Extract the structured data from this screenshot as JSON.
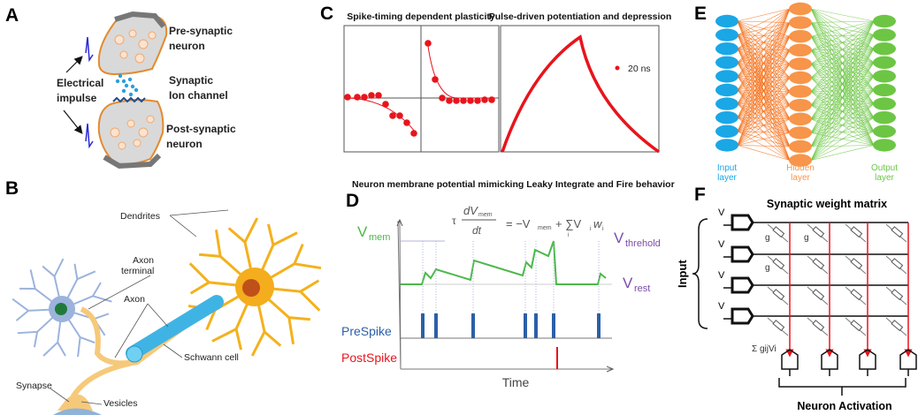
{
  "panels": {
    "A": {
      "label": "A",
      "pre": [
        "Pre-synaptic",
        "neuron"
      ],
      "channel": [
        "Synaptic",
        "Ion channel"
      ],
      "impulse": [
        "Electrical",
        "impulse"
      ],
      "post": [
        "Post-synaptic",
        "neuron"
      ]
    },
    "B": {
      "label": "B",
      "dendrites": "Dendrites",
      "axon_terminal": [
        "Axon",
        "terminal"
      ],
      "axon": "Axon",
      "schwann": "Schwann cell",
      "synapse": "Synapse",
      "vesicles": "Vesicles"
    },
    "C": {
      "label": "C",
      "title_left": "Spike-timing dependent plasticity",
      "title_right": "Pulse-driven potentiation and depression",
      "legend": "20 ns",
      "color": "#e8141c"
    },
    "D": {
      "title": "Neuron membrane potential mimicking Leaky Integrate and Fire behavior",
      "label": "D",
      "vmem": "V",
      "vmem_sub": "mem",
      "vth": "V",
      "vth_sub": "threhold",
      "vrest": "V",
      "vrest_sub": "rest",
      "equation": {
        "tau": "τ",
        "num": "dV",
        "num_sub": "mem",
        "den": "dt",
        "rhs": "= −V",
        "rhs_sub": "mem",
        "plus": "+ ∑V",
        "plus_sub": "i",
        "w": "w",
        "w_sub": "i",
        "sum_sub": "i"
      },
      "prespike": "PreSpike",
      "postspike": "PostSpike",
      "xlabel": "Time",
      "colors": {
        "vmem": "#4cb84a",
        "threshold": "#7a4ca8",
        "prespike": "#2c5fa8",
        "postspike": "#e8141c"
      }
    },
    "E": {
      "label": "E",
      "layers": [
        {
          "name": "Input",
          "sub": "layer",
          "nodes": 10,
          "color": "#1aa7e6"
        },
        {
          "name": "Hidden",
          "sub": "layer",
          "nodes": 12,
          "color": "#f7954a"
        },
        {
          "name": "Output",
          "sub": "layer",
          "nodes": 10,
          "color": "#6cc644"
        }
      ]
    },
    "F": {
      "label": "F",
      "title": "Synaptic weight matrix",
      "inputs": [
        "V1",
        "V2",
        "V3",
        "V4"
      ],
      "input_label": "Input",
      "g": [
        "g11",
        "g12",
        "g21"
      ],
      "sum": "Σ gijVi",
      "output_label": "Neuron Activation"
    }
  }
}
